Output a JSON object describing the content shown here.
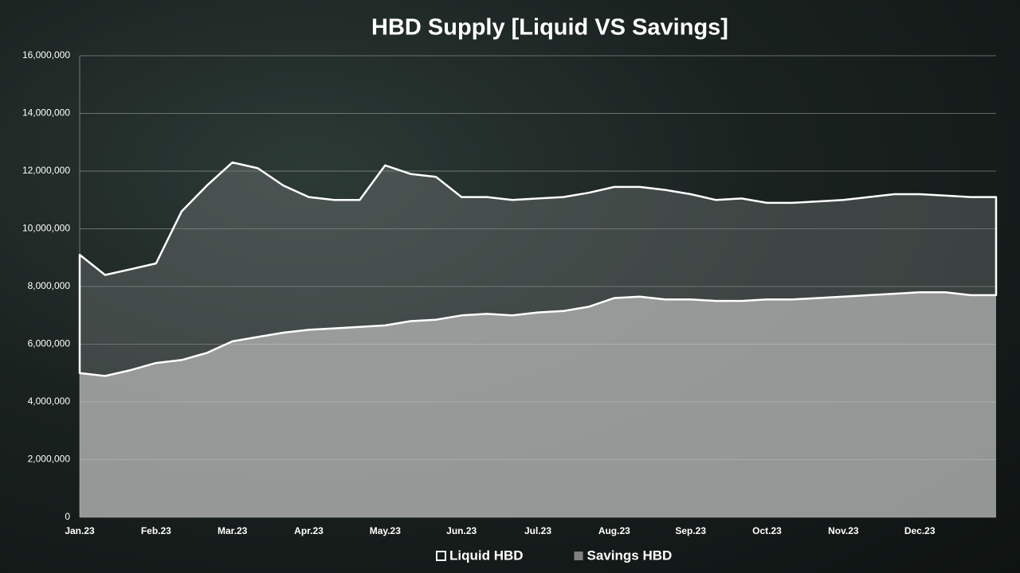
{
  "chart_data": {
    "type": "area",
    "stacked": true,
    "title": "HBD Supply [Liquid VS Savings]",
    "categories": [
      "Jan.23",
      null,
      null,
      "Feb.23",
      null,
      null,
      "Mar.23",
      null,
      null,
      "Apr.23",
      null,
      null,
      "May.23",
      null,
      null,
      "Jun.23",
      null,
      null,
      "Jul.23",
      null,
      null,
      "Aug.23",
      null,
      null,
      "Sep.23",
      null,
      null,
      "Oct.23",
      null,
      null,
      "Nov.23",
      null,
      null,
      "Dec.23",
      null,
      null,
      null
    ],
    "series": [
      {
        "name": "Liquid HBD",
        "color": "#ffffff",
        "values": [
          4100000,
          3500000,
          3500000,
          3450000,
          5150000,
          5800000,
          6200000,
          5850000,
          5100000,
          4600000,
          4450000,
          4400000,
          5550000,
          5100000,
          4950000,
          4100000,
          4050000,
          4000000,
          3950000,
          3950000,
          3950000,
          3850000,
          3800000,
          3800000,
          3650000,
          3500000,
          3550000,
          3350000,
          3350000,
          3350000,
          3350000,
          3400000,
          3450000,
          3400000,
          3350000,
          3400000,
          3400000
        ]
      },
      {
        "name": "Savings HBD",
        "color": "#808080",
        "values": [
          5000000,
          4900000,
          5100000,
          5350000,
          5450000,
          5700000,
          6100000,
          6250000,
          6400000,
          6500000,
          6550000,
          6600000,
          6650000,
          6800000,
          6850000,
          7000000,
          7050000,
          7000000,
          7100000,
          7150000,
          7300000,
          7600000,
          7650000,
          7550000,
          7550000,
          7500000,
          7500000,
          7550000,
          7550000,
          7600000,
          7650000,
          7700000,
          7750000,
          7800000,
          7800000,
          7700000,
          7700000
        ]
      }
    ],
    "ylim": [
      0,
      16000000
    ],
    "yticks": [
      0,
      {
        "value": 2000000,
        "label": "2,000,000"
      },
      {
        "value": 4000000,
        "label": "4,000,000"
      },
      {
        "value": 6000000,
        "label": "6,000,000"
      },
      {
        "value": 8000000,
        "label": "8,000,000"
      },
      {
        "value": 10000000,
        "label": "10,000,000"
      },
      {
        "value": 12000000,
        "label": "12,000,000"
      },
      {
        "value": 14000000,
        "label": "14,000,000"
      },
      {
        "value": 16000000,
        "label": "16,000,000"
      }
    ],
    "grid": true
  }
}
